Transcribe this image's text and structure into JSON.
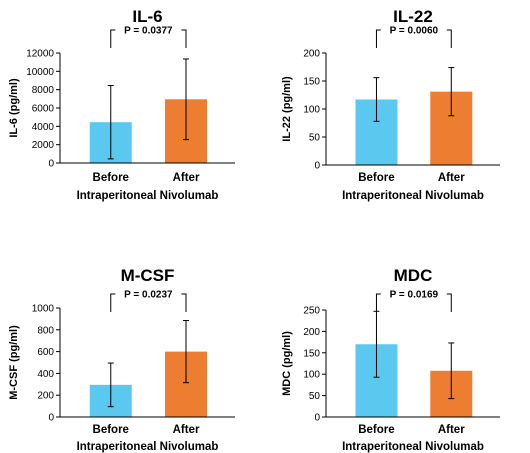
{
  "chart_data": [
    {
      "type": "bar",
      "title": "IL-6",
      "ylabel": "IL-6 (pg/ml)",
      "xlabel": "Intraperitoneal Nivolumab",
      "categories": [
        "Before",
        "After"
      ],
      "values": [
        4450,
        6950
      ],
      "error": [
        4000,
        4400
      ],
      "ylim": [
        0,
        12000
      ],
      "yticks": [
        "0",
        "2000",
        "4000",
        "6000",
        "8000",
        "10000",
        "12000"
      ],
      "p_value": "P = 0.0377",
      "colors": [
        "#5bc8f0",
        "#ed7d31"
      ]
    },
    {
      "type": "bar",
      "title": "IL-22",
      "ylabel": "IL-22 (pg/ml)",
      "xlabel": "Intraperitoneal Nivolumab",
      "categories": [
        "Before",
        "After"
      ],
      "values": [
        117,
        131
      ],
      "error": [
        39,
        43
      ],
      "ylim": [
        0,
        200
      ],
      "yticks": [
        "0",
        "50",
        "100",
        "150",
        "200"
      ],
      "p_value": "P = 0.0060",
      "colors": [
        "#5bc8f0",
        "#ed7d31"
      ]
    },
    {
      "type": "bar",
      "title": "M-CSF",
      "ylabel": "M-CSF (pg/ml)",
      "xlabel": "Intraperitoneal Nivolumab",
      "categories": [
        "Before",
        "After"
      ],
      "values": [
        295,
        600
      ],
      "error": [
        200,
        285
      ],
      "ylim": [
        0,
        1000
      ],
      "yticks": [
        "0",
        "200",
        "400",
        "600",
        "800",
        "1000"
      ],
      "p_value": "P = 0.0237",
      "colors": [
        "#5bc8f0",
        "#ed7d31"
      ]
    },
    {
      "type": "bar",
      "title": "MDC",
      "ylabel": "MDC (pg/ml)",
      "xlabel": "Intraperitoneal Nivolumab",
      "categories": [
        "Before",
        "After"
      ],
      "values": [
        170,
        108
      ],
      "error": [
        77,
        65
      ],
      "ylim": [
        0,
        250
      ],
      "yticks": [
        "0",
        "50",
        "100",
        "150",
        "200",
        "250"
      ],
      "p_value": "P = 0.0169",
      "colors": [
        "#5bc8f0",
        "#ed7d31"
      ]
    }
  ]
}
